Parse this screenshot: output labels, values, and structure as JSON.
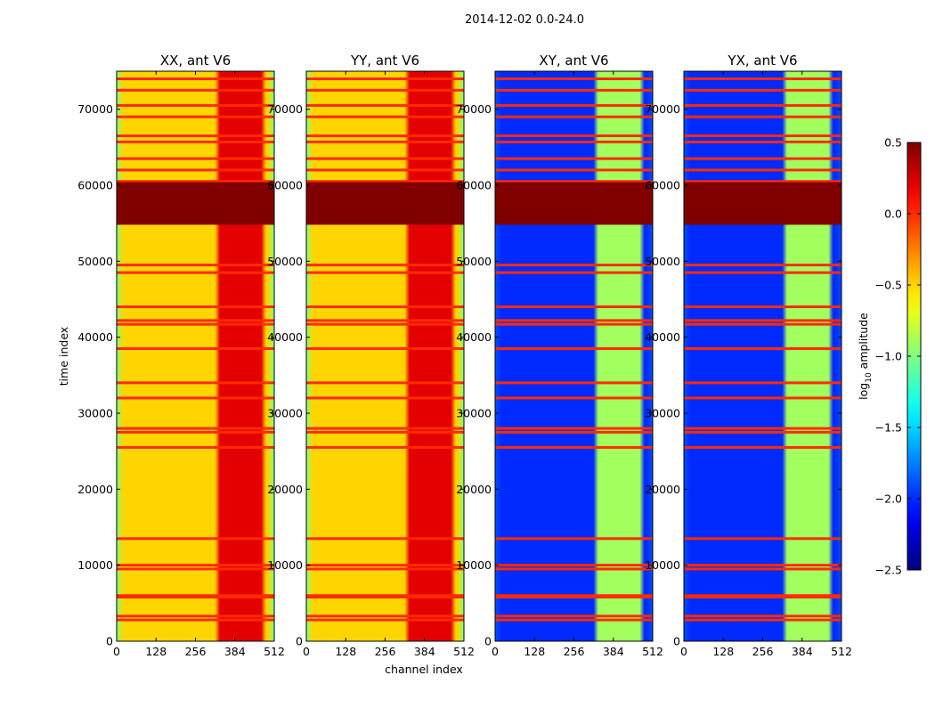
{
  "chart_data": {
    "type": "heatmap",
    "title": "2014-12-02 0.0-24.0",
    "xlabel": "channel index",
    "ylabel": "time index",
    "xlim": [
      0,
      512
    ],
    "ylim": [
      0,
      75000
    ],
    "xticks": [
      0,
      128,
      256,
      384,
      512
    ],
    "yticks": [
      0,
      10000,
      20000,
      30000,
      40000,
      50000,
      60000,
      70000
    ],
    "colorscale": "jet",
    "colorbar": {
      "label": "log10 amplitude",
      "label_base": "log",
      "label_sub": "10",
      "label_rest": " amplitude",
      "vmin": -2.5,
      "vmax": 0.5,
      "ticks": [
        "0.5",
        "0.0",
        "−0.5",
        "−1.0",
        "−1.5",
        "−2.0",
        "−2.5"
      ],
      "tick_values": [
        0.5,
        0.0,
        -0.5,
        -1.0,
        -1.5,
        -2.0,
        -2.5
      ]
    },
    "panels": [
      {
        "title": "XX, ant V6",
        "background_level": -0.5,
        "rfi_band_channels": [
          325,
          480
        ],
        "rfi_band_level": 0.2,
        "edge_level": -1.0
      },
      {
        "title": "YY, ant V6",
        "background_level": -0.5,
        "rfi_band_channels": [
          325,
          480
        ],
        "rfi_band_level": 0.2,
        "edge_level": -1.0
      },
      {
        "title": "XY, ant V6",
        "background_level": -2.0,
        "rfi_band_channels": [
          325,
          480
        ],
        "rfi_band_level": -0.9,
        "edge_level": -1.9
      },
      {
        "title": "YX, ant V6",
        "background_level": -2.0,
        "rfi_band_channels": [
          325,
          480
        ],
        "rfi_band_level": -0.9,
        "edge_level": -1.9
      }
    ],
    "saturated_block_time": [
      54800,
      60400
    ],
    "saturated_level": 0.5,
    "flagged_rows_time": [
      2800,
      3300,
      5800,
      6000,
      9500,
      10000,
      13500,
      25500,
      27500,
      28000,
      32000,
      34000,
      38500,
      41700,
      42200,
      44000,
      48500,
      49500,
      60500,
      62000,
      63500,
      65700,
      66500,
      69000,
      70500,
      72500,
      74000
    ]
  }
}
